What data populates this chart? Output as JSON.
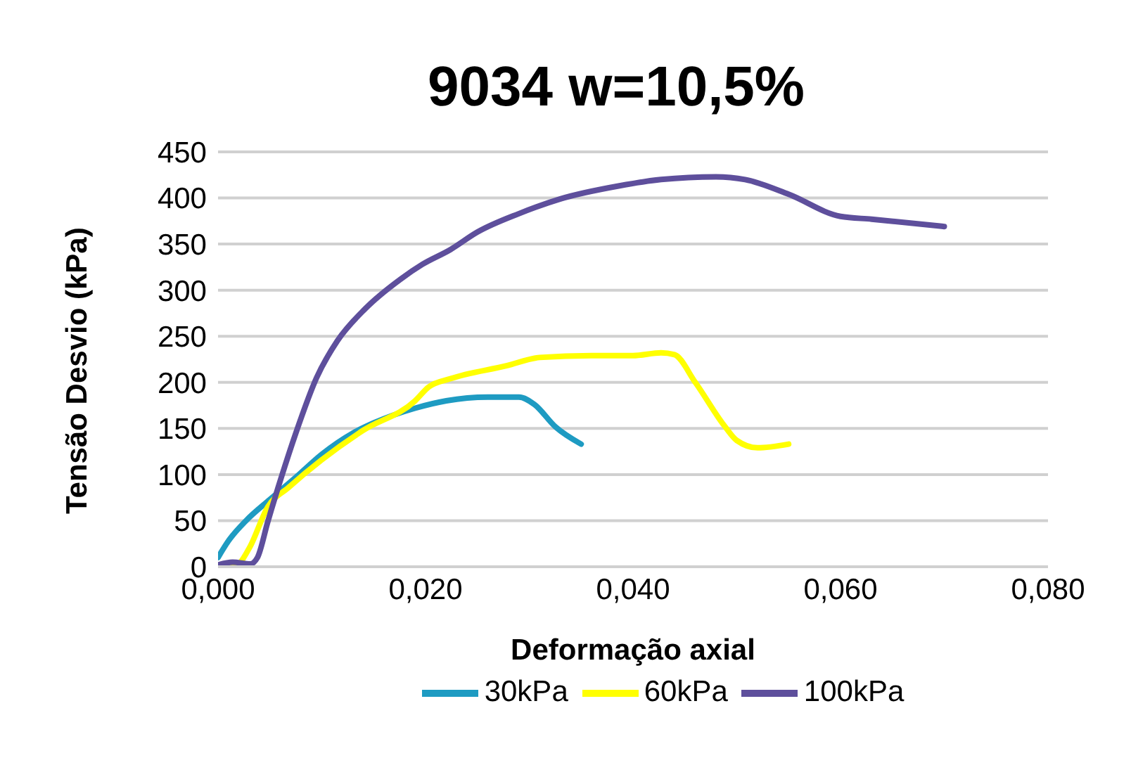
{
  "chart_data": {
    "type": "line",
    "title": "9034 w=10,5%",
    "xlabel": "Deformação axial",
    "ylabel": "Tensão Desvio (kPa)",
    "xlim": [
      0,
      0.08
    ],
    "xticks": [
      {
        "value": 0,
        "label": "0,000"
      },
      {
        "value": 0.02,
        "label": "0,020"
      },
      {
        "value": 0.04,
        "label": "0,040"
      },
      {
        "value": 0.06,
        "label": "0,060"
      },
      {
        "value": 0.08,
        "label": "0,080"
      }
    ],
    "ylim": [
      0,
      450
    ],
    "yticks": [
      0,
      50,
      100,
      150,
      200,
      250,
      300,
      350,
      400,
      450
    ],
    "grid": "y",
    "legend": "bottom",
    "marker": "none",
    "line_style": "solid",
    "series": [
      {
        "name": "30kPa",
        "color": "#1e9bc2",
        "x": [
          0,
          0.001,
          0.0027,
          0.005,
          0.0075,
          0.01,
          0.013,
          0.015,
          0.019,
          0.022,
          0.026,
          0.029,
          0.0305,
          0.0325,
          0.035
        ],
        "values": [
          10,
          28,
          50,
          73,
          97,
          122,
          145,
          156,
          172,
          180,
          184,
          184,
          176,
          152,
          133
        ]
      },
      {
        "name": "60kPa",
        "color": "#ffff00",
        "x": [
          0,
          0.0018,
          0.003,
          0.0048,
          0.0068,
          0.01,
          0.014,
          0.019,
          0.0203,
          0.0224,
          0.0278,
          0.031,
          0.036,
          0.04,
          0.0427,
          0.044,
          0.046,
          0.0488,
          0.05,
          0.052,
          0.055
        ],
        "values": [
          0,
          2,
          20,
          65,
          86,
          116,
          148,
          180,
          195,
          204,
          218,
          227,
          229,
          229,
          232,
          230,
          200,
          153,
          137,
          129,
          133
        ]
      },
      {
        "name": "100kPa",
        "color": "#5e4f9c",
        "x": [
          0,
          0.0014,
          0.0031,
          0.0038,
          0.0048,
          0.0061,
          0.0075,
          0.0095,
          0.0115,
          0.0142,
          0.0176,
          0.0197,
          0.0224,
          0.025,
          0.029,
          0.033,
          0.0386,
          0.0427,
          0.048,
          0.0508,
          0.055,
          0.06,
          0.063,
          0.07
        ],
        "values": [
          2,
          5,
          3,
          10,
          49,
          97,
          145,
          205,
          245,
          280,
          312,
          328,
          344,
          363,
          383,
          399,
          413,
          420,
          423,
          420,
          404,
          380,
          377,
          369
        ]
      }
    ]
  }
}
